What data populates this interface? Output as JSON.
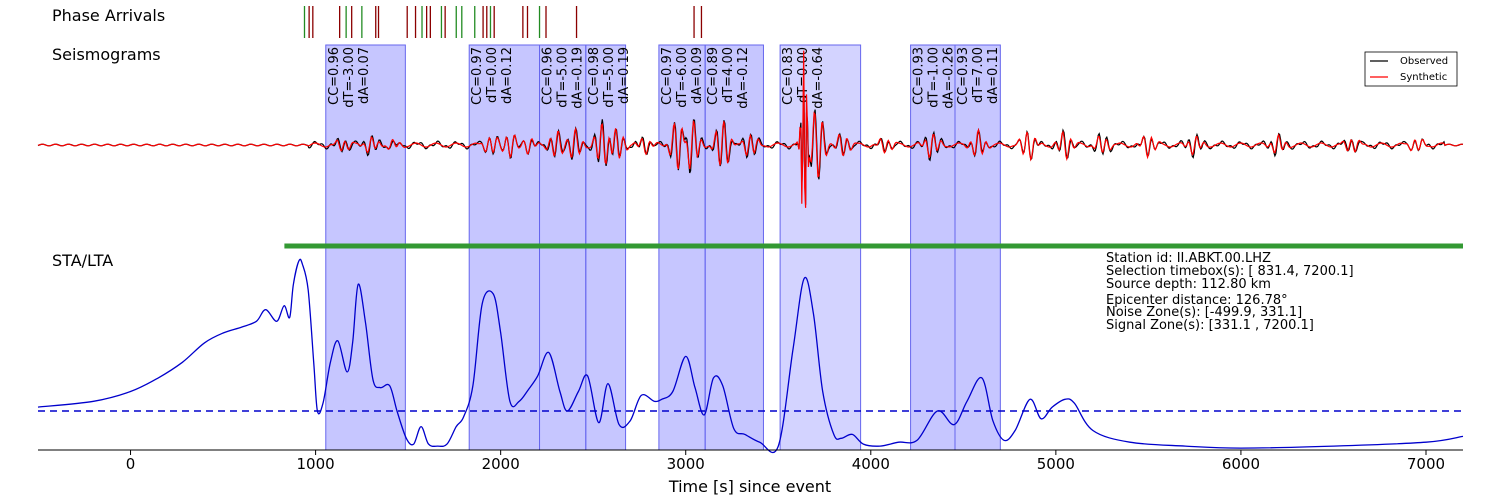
{
  "panels": {
    "phase_title": "Phase Arrivals",
    "seis_title": "Seismograms",
    "stalta_title": "STA/LTA"
  },
  "legend": {
    "observed": "Observed",
    "synthetic": "Synthetic"
  },
  "info": {
    "lines": [
      "Station id: II.ABKT.00.LHZ",
      "Selection timebox(s): [ 831.4, 7200.1]",
      "Source depth: 112.80 km",
      "Epicenter distance:  126.78°",
      "Noise  Zone(s): [-499.9,  331.1]",
      "Signal Zone(s): [331.1 , 7200.1]"
    ]
  },
  "colors": {
    "observed": "#000000",
    "synthetic": "#ff0000",
    "stalta": "#0000cc",
    "window_fill": "#7777ff",
    "window_edge": "#6666ee",
    "selection_bar": "#339933",
    "phase_green": "#228b22",
    "phase_darkred": "#8b0000"
  },
  "chart_data": {
    "type": "line",
    "xlabel": "Time [s] since event",
    "xlim": [
      -500,
      7200
    ],
    "xticks": [
      0,
      1000,
      2000,
      3000,
      4000,
      5000,
      6000,
      7000
    ],
    "selection_timebox": [
      831.4,
      7200.1
    ],
    "stalta_threshold": 0.2,
    "phase_arrivals": [
      {
        "t": 940,
        "c": "g"
      },
      {
        "t": 965,
        "c": "r"
      },
      {
        "t": 985,
        "c": "r"
      },
      {
        "t": 1130,
        "c": "r"
      },
      {
        "t": 1165,
        "c": "g"
      },
      {
        "t": 1195,
        "c": "r"
      },
      {
        "t": 1250,
        "c": "g"
      },
      {
        "t": 1325,
        "c": "r"
      },
      {
        "t": 1340,
        "c": "r"
      },
      {
        "t": 1495,
        "c": "r"
      },
      {
        "t": 1540,
        "c": "r"
      },
      {
        "t": 1575,
        "c": "g"
      },
      {
        "t": 1600,
        "c": "r"
      },
      {
        "t": 1620,
        "c": "r"
      },
      {
        "t": 1680,
        "c": "g"
      },
      {
        "t": 1700,
        "c": "r"
      },
      {
        "t": 1760,
        "c": "g"
      },
      {
        "t": 1790,
        "c": "g"
      },
      {
        "t": 1860,
        "c": "g"
      },
      {
        "t": 1905,
        "c": "r"
      },
      {
        "t": 1925,
        "c": "r"
      },
      {
        "t": 1945,
        "c": "g"
      },
      {
        "t": 1965,
        "c": "r"
      },
      {
        "t": 2120,
        "c": "r"
      },
      {
        "t": 2145,
        "c": "r"
      },
      {
        "t": 2210,
        "c": "g"
      },
      {
        "t": 2245,
        "c": "r"
      },
      {
        "t": 2410,
        "c": "r"
      },
      {
        "t": 3045,
        "c": "r"
      },
      {
        "t": 3085,
        "c": "r"
      }
    ],
    "windows": [
      {
        "start": 1055,
        "end": 1485,
        "cc": "CC=0.96",
        "dt": "dT=-3.00",
        "da": "dA=0.07",
        "alpha": 0.42
      },
      {
        "start": 1830,
        "end": 2210,
        "cc": "CC=0.97",
        "dt": "dT=0.00",
        "da": "dA=0.12",
        "alpha": 0.42
      },
      {
        "start": 2210,
        "end": 2460,
        "cc": "CC=0.96",
        "dt": "dT=-5.00",
        "da": "dA=-0.19",
        "alpha": 0.42
      },
      {
        "start": 2460,
        "end": 2675,
        "cc": "CC=0.98",
        "dt": "dT=-5.00",
        "da": "dA=0.19",
        "alpha": 0.42
      },
      {
        "start": 2855,
        "end": 3105,
        "cc": "CC=0.97",
        "dt": "dT=-6.00",
        "da": "dA=0.09",
        "alpha": 0.42
      },
      {
        "start": 3105,
        "end": 3420,
        "cc": "CC=0.89",
        "dt": "dT=4.00",
        "da": "dA=-0.12",
        "alpha": 0.42
      },
      {
        "start": 3510,
        "end": 3945,
        "cc": "CC=0.83",
        "dt": "dT=0.00",
        "da": "dA=-0.64",
        "alpha": 0.32
      },
      {
        "start": 4215,
        "end": 4455,
        "cc": "CC=0.93",
        "dt": "dT=-1.00",
        "da": "dA=-0.26",
        "alpha": 0.42
      },
      {
        "start": 4455,
        "end": 4700,
        "cc": "CC=0.93",
        "dt": "dT=7.00",
        "da": "dA=0.11",
        "alpha": 0.42
      }
    ],
    "seismogram_bursts": [
      {
        "t": 1150,
        "a": 0.08
      },
      {
        "t": 1300,
        "a": 0.1
      },
      {
        "t": 1420,
        "a": 0.06
      },
      {
        "t": 1950,
        "a": 0.12
      },
      {
        "t": 2050,
        "a": 0.16
      },
      {
        "t": 2150,
        "a": 0.1
      },
      {
        "t": 2300,
        "a": 0.18
      },
      {
        "t": 2400,
        "a": 0.2
      },
      {
        "t": 2550,
        "a": 0.3
      },
      {
        "t": 2630,
        "a": 0.22
      },
      {
        "t": 2780,
        "a": 0.1
      },
      {
        "t": 2960,
        "a": 0.38
      },
      {
        "t": 3030,
        "a": 0.36
      },
      {
        "t": 3200,
        "a": 0.34
      },
      {
        "t": 3350,
        "a": 0.15
      },
      {
        "t": 3640,
        "a": 1.0
      },
      {
        "t": 3710,
        "a": 0.5
      },
      {
        "t": 3850,
        "a": 0.15
      },
      {
        "t": 4080,
        "a": 0.1
      },
      {
        "t": 4330,
        "a": 0.16
      },
      {
        "t": 4580,
        "a": 0.18
      },
      {
        "t": 4850,
        "a": 0.2
      },
      {
        "t": 5050,
        "a": 0.18
      },
      {
        "t": 5250,
        "a": 0.12
      },
      {
        "t": 5500,
        "a": 0.15
      },
      {
        "t": 5750,
        "a": 0.12
      },
      {
        "t": 6200,
        "a": 0.12
      },
      {
        "t": 6600,
        "a": 0.1
      },
      {
        "t": 6950,
        "a": 0.09
      }
    ],
    "stalta": {
      "t": [
        -500,
        -200,
        0,
        150,
        280,
        400,
        500,
        600,
        680,
        730,
        790,
        830,
        860,
        880,
        910,
        930,
        960,
        990,
        1010,
        1040,
        1080,
        1120,
        1170,
        1200,
        1230,
        1270,
        1310,
        1350,
        1400,
        1440,
        1490,
        1530,
        1570,
        1610,
        1660,
        1710,
        1760,
        1800,
        1850,
        1900,
        1960,
        2000,
        2050,
        2100,
        2150,
        2200,
        2260,
        2320,
        2360,
        2420,
        2470,
        2530,
        2580,
        2640,
        2700,
        2760,
        2830,
        2870,
        2930,
        3000,
        3050,
        3100,
        3150,
        3200,
        3260,
        3320,
        3400,
        3500,
        3580,
        3640,
        3690,
        3740,
        3800,
        3840,
        3900,
        3960,
        4050,
        4150,
        4250,
        4360,
        4450,
        4520,
        4600,
        4660,
        4720,
        4780,
        4860,
        4920,
        4980,
        5050,
        5100,
        5200,
        5400,
        5700,
        6000,
        6500,
        7000,
        7200
      ],
      "v": [
        0.22,
        0.25,
        0.3,
        0.37,
        0.45,
        0.55,
        0.6,
        0.63,
        0.66,
        0.72,
        0.66,
        0.74,
        0.68,
        0.85,
        0.97,
        0.95,
        0.82,
        0.45,
        0.2,
        0.24,
        0.45,
        0.56,
        0.4,
        0.55,
        0.85,
        0.65,
        0.36,
        0.32,
        0.33,
        0.2,
        0.06,
        0.03,
        0.12,
        0.03,
        0.02,
        0.03,
        0.12,
        0.17,
        0.33,
        0.75,
        0.8,
        0.6,
        0.25,
        0.25,
        0.31,
        0.38,
        0.5,
        0.3,
        0.2,
        0.3,
        0.38,
        0.14,
        0.34,
        0.13,
        0.15,
        0.28,
        0.25,
        0.26,
        0.3,
        0.48,
        0.32,
        0.18,
        0.37,
        0.33,
        0.11,
        0.08,
        0.04,
        0.02,
        0.52,
        0.88,
        0.7,
        0.3,
        0.08,
        0.06,
        0.08,
        0.03,
        0.02,
        0.04,
        0.05,
        0.2,
        0.13,
        0.25,
        0.37,
        0.15,
        0.05,
        0.1,
        0.26,
        0.16,
        0.22,
        0.26,
        0.24,
        0.1,
        0.04,
        0.02,
        0.01,
        0.02,
        0.04,
        0.07
      ]
    }
  }
}
